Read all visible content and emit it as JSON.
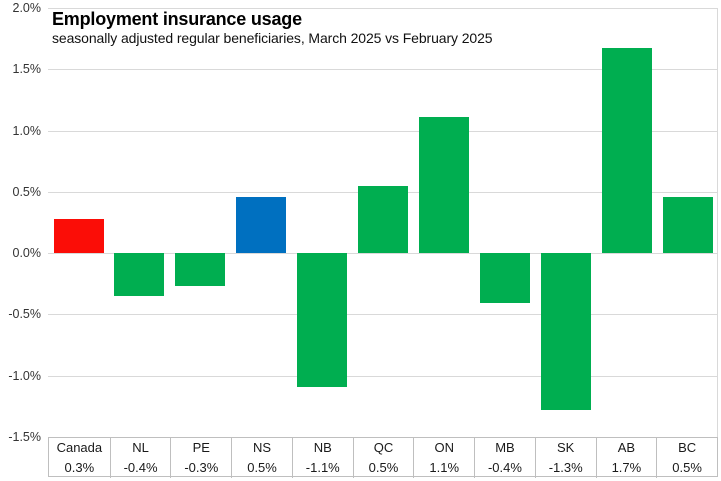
{
  "chart_data": {
    "type": "bar",
    "title": "Employment insurance usage",
    "subtitle": "seasonally adjusted regular beneficiaries, March 2025 vs February 2025",
    "categories": [
      "Canada",
      "NL",
      "PE",
      "NS",
      "NB",
      "QC",
      "ON",
      "MB",
      "SK",
      "AB",
      "BC"
    ],
    "values": [
      0.28,
      -0.35,
      -0.27,
      0.46,
      -1.09,
      0.55,
      1.11,
      -0.41,
      -1.28,
      1.67,
      0.46
    ],
    "value_labels": [
      "0.3%",
      "-0.4%",
      "-0.3%",
      "0.5%",
      "-1.1%",
      "0.5%",
      "1.1%",
      "-0.4%",
      "-1.3%",
      "1.7%",
      "0.5%"
    ],
    "bar_colors": [
      "#fb0d07",
      "#00ae50",
      "#00ae50",
      "#0070c0",
      "#00ae50",
      "#00ae50",
      "#00ae50",
      "#00ae50",
      "#00ae50",
      "#00ae50",
      "#00ae50"
    ],
    "y_ticks": [
      "2.0%",
      "1.5%",
      "1.0%",
      "0.5%",
      "0.0%",
      "-0.5%",
      "-1.0%",
      "-1.5%"
    ],
    "y_tick_values": [
      2.0,
      1.5,
      1.0,
      0.5,
      0.0,
      -0.5,
      -1.0,
      -1.5
    ],
    "ylim": [
      -1.5,
      2.0
    ],
    "grid": true,
    "legend": "none",
    "xlabel": "",
    "ylabel": ""
  },
  "colors": {
    "canada_bar": "#fb0d07",
    "nova_scotia_bar": "#0070c0",
    "province_bar": "#00ae50",
    "gridline": "#d9d9d9",
    "table_border": "#bfbfbf"
  }
}
